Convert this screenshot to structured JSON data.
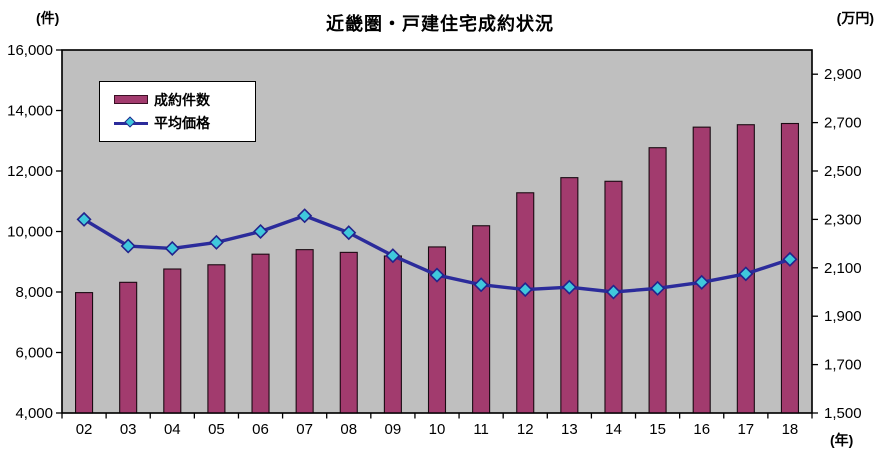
{
  "header": {
    "title": "近畿圏・戸建住宅成約状況",
    "left_unit": "(件)",
    "right_unit": "(万円)",
    "x_unit": "(年)"
  },
  "legend": {
    "series1_label": "成約件数",
    "series2_label": "平均価格"
  },
  "colors": {
    "bar_fill": "#a23b6e",
    "bar_border": "#1a0a12",
    "line": "#2b2b9b",
    "marker_fill": "#3fc8dc",
    "marker_border": "#23238c",
    "plot_bg": "#bfbfbf",
    "plot_border": "#000000",
    "text": "#000000"
  },
  "chart_data": {
    "type": "bar",
    "subtype": "bar+line combo, dual axis",
    "title": "近畿圏・戸建住宅成約状況",
    "categories": [
      "02",
      "03",
      "04",
      "05",
      "06",
      "07",
      "08",
      "09",
      "10",
      "11",
      "12",
      "13",
      "14",
      "15",
      "16",
      "17",
      "18"
    ],
    "series": [
      {
        "name": "成約件数",
        "type": "bar",
        "axis": "left",
        "unit": "件",
        "values": [
          7980,
          8320,
          8760,
          8900,
          9250,
          9400,
          9310,
          9190,
          9490,
          10190,
          11280,
          11780,
          11660,
          12770,
          13450,
          13530,
          13570
        ]
      },
      {
        "name": "平均価格",
        "type": "line",
        "axis": "right",
        "unit": "万円",
        "values": [
          2300,
          2190,
          2180,
          2205,
          2250,
          2315,
          2245,
          2150,
          2070,
          2030,
          2010,
          2020,
          2000,
          2015,
          2040,
          2075,
          2135
        ]
      }
    ],
    "left_axis": {
      "unit": "(件)",
      "min": 4000,
      "max": 16000,
      "tick_step": 2000
    },
    "right_axis": {
      "unit": "(万円)",
      "min": 1500,
      "max": 3000,
      "tick_step": 200,
      "last_label": 2900
    },
    "x_axis": {
      "unit": "(年)"
    },
    "grid": false,
    "plot_background": "gray",
    "legend_position": "inside-top-left"
  }
}
